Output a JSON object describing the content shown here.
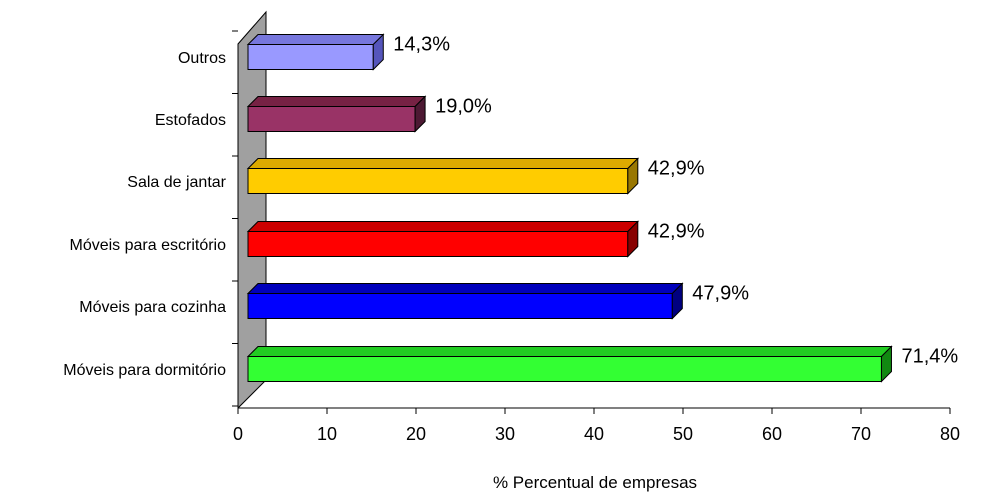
{
  "chart_data": {
    "type": "bar",
    "orientation": "horizontal",
    "style": "3d",
    "categories": [
      "Móveis para dormitório",
      "Móveis para cozinha",
      "Móveis para escritório",
      "Sala de jantar",
      "Estofados",
      "Outros"
    ],
    "values": [
      71.4,
      47.9,
      42.9,
      42.9,
      19.0,
      14.3
    ],
    "value_labels": [
      "71,4%",
      "47,9%",
      "42,9%",
      "42,9%",
      "19,0%",
      "14,3%"
    ],
    "colors": [
      "#33FF33",
      "#0000FF",
      "#FF0000",
      "#FFCC00",
      "#993366",
      "#9999FF"
    ],
    "side_colors": [
      "#118811",
      "#000080",
      "#880000",
      "#997700",
      "#4d1933",
      "#5555bb"
    ],
    "top_colors": [
      "#22cc22",
      "#0000bb",
      "#cc0000",
      "#ddaa00",
      "#772244",
      "#7777dd"
    ],
    "xlabel": "% Percentual de empresas",
    "xlim": [
      0,
      80
    ],
    "xticks": [
      0,
      10,
      20,
      30,
      40,
      50,
      60,
      70,
      80
    ],
    "xtick_labels": [
      "0",
      "10",
      "20",
      "30",
      "40",
      "50",
      "60",
      "70",
      "80"
    ],
    "wall_color": "#A0A0A0",
    "grid": false
  }
}
